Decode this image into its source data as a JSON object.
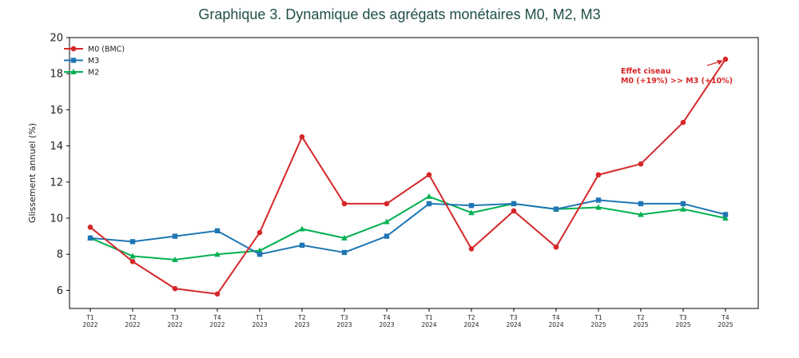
{
  "chart_data": {
    "type": "line",
    "title": "Graphique 3. Dynamique des agrégats monétaires M0, M2, M3",
    "ylabel": "Glissement annuel (%)",
    "xlabel": "",
    "ylim": [
      5,
      20
    ],
    "yticks": [
      6,
      8,
      10,
      12,
      14,
      16,
      18,
      20
    ],
    "categories": [
      [
        "T1",
        "2022"
      ],
      [
        "T2",
        "2022"
      ],
      [
        "T3",
        "2022"
      ],
      [
        "T4",
        "2022"
      ],
      [
        "T1",
        "2023"
      ],
      [
        "T2",
        "2023"
      ],
      [
        "T3",
        "2023"
      ],
      [
        "T4",
        "2023"
      ],
      [
        "T1",
        "2024"
      ],
      [
        "T2",
        "2024"
      ],
      [
        "T3",
        "2024"
      ],
      [
        "T4",
        "2024"
      ],
      [
        "T1",
        "2025"
      ],
      [
        "T2",
        "2025"
      ],
      [
        "T3",
        "2025"
      ],
      [
        "T4",
        "2025"
      ]
    ],
    "legend_position": "top-left",
    "grid": false,
    "series": [
      {
        "name": "M0 (BMC)",
        "color": "#d62728",
        "marker": "circle",
        "values": [
          9.5,
          7.6,
          6.1,
          5.8,
          9.2,
          14.5,
          10.8,
          10.8,
          12.4,
          8.3,
          10.4,
          8.4,
          12.4,
          13.0,
          15.3,
          18.8
        ]
      },
      {
        "name": "M3",
        "color": "#1f77b4",
        "marker": "square",
        "values": [
          8.9,
          8.7,
          9.0,
          9.3,
          8.0,
          8.5,
          8.1,
          9.0,
          10.8,
          10.7,
          10.8,
          10.5,
          11.0,
          10.8,
          10.8,
          10.2
        ]
      },
      {
        "name": "M2",
        "color": "#00b050",
        "marker": "triangle",
        "values": [
          8.9,
          7.9,
          7.7,
          8.0,
          8.2,
          9.4,
          8.9,
          9.8,
          11.2,
          10.3,
          10.8,
          10.5,
          10.6,
          10.2,
          10.5,
          10.0
        ]
      }
    ],
    "annotation": {
      "lines": [
        "Effet ciseau",
        "M0 (+19%) >> M3 (+10%)"
      ],
      "color": "#d62728",
      "points_to": {
        "series": "M0 (BMC)",
        "category_index": 15
      }
    }
  }
}
